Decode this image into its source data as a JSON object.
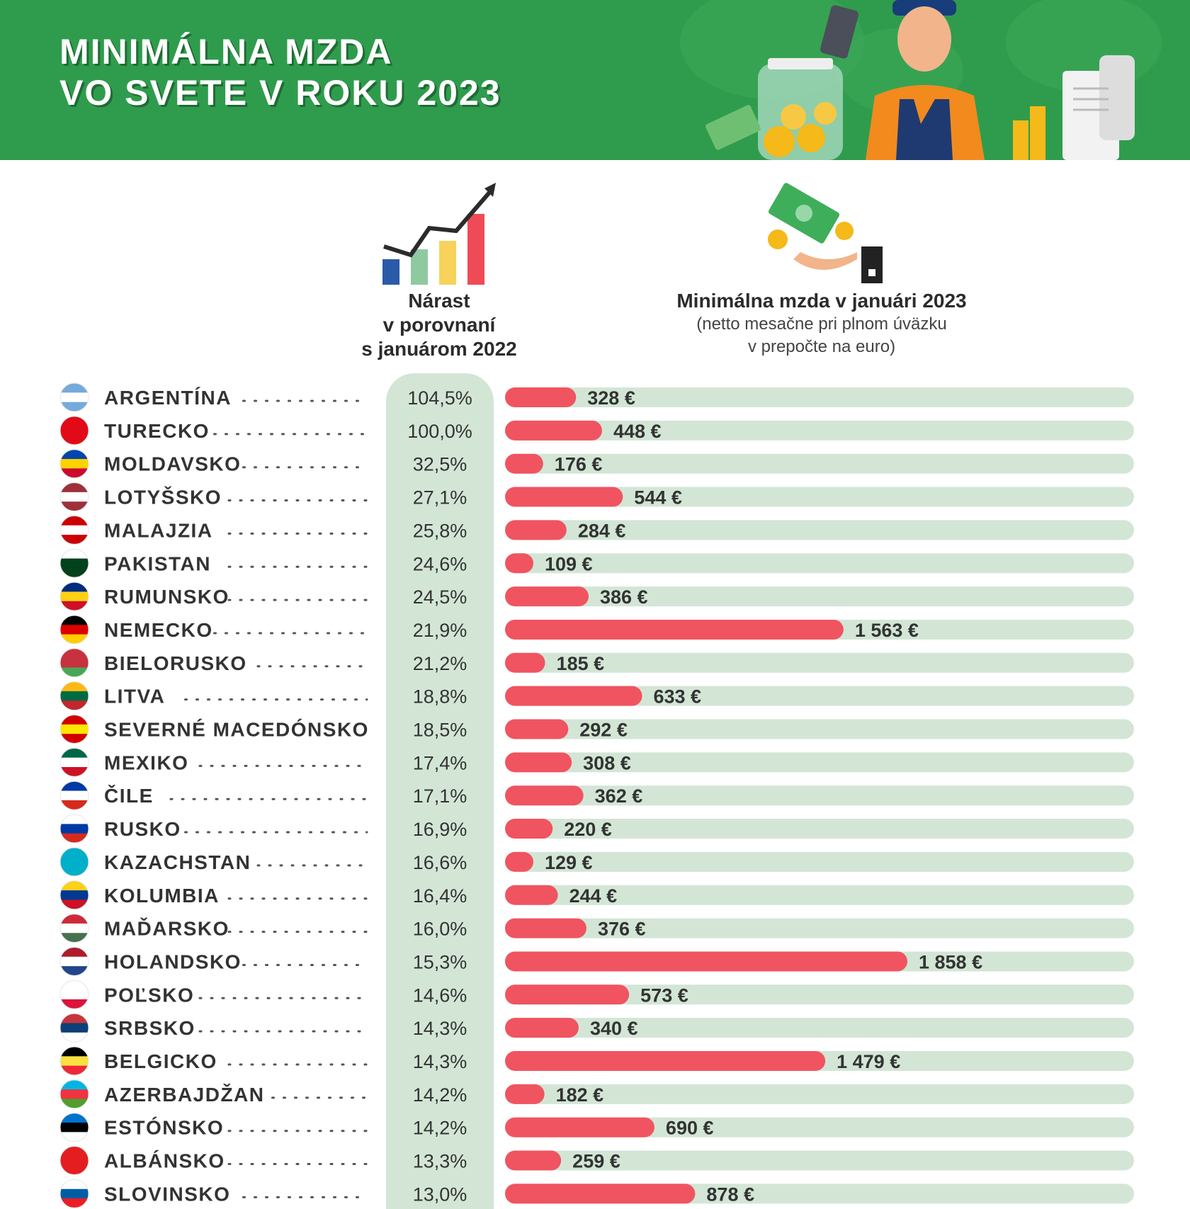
{
  "header": {
    "title_line1": "MINIMÁLNA MZDA",
    "title_line2": "VO SVETE V ROKU 2023"
  },
  "columns": {
    "growth_l1": "Nárast",
    "growth_l2": "v porovnaní",
    "growth_l3": "s januárom 2022",
    "wage_l1": "Minimálna mzda v januári 2023",
    "wage_l2": "(netto mesačne pri plnom úväzku",
    "wage_l3": "v prepočte na euro)"
  },
  "colors": {
    "header_green": "#2f9c4d",
    "bar_red": "#f05460",
    "track_green": "#d3e6d6"
  },
  "chart_data": {
    "type": "bar",
    "orientation": "horizontal",
    "unit": "€",
    "categories": [
      "ARGENTÍNA",
      "TURECKO",
      "MOLDAVSKO",
      "LOTYŠSKO",
      "MALAJZIA",
      "PAKISTAN",
      "RUMUNSKO",
      "NEMECKO",
      "BIELORUSKO",
      "LITVA",
      "SEVERNÉ MACEDÓNSKO",
      "MEXIKO",
      "ČILE",
      "RUSKO",
      "KAZACHSTAN",
      "KOLUMBIA",
      "MAĎARSKO",
      "HOLANDSKO",
      "POĽSKO",
      "SRBSKO",
      "BELGICKO",
      "AZERBAJDŽAN",
      "ESTÓNSKO",
      "ALBÁNSKO",
      "SLOVINSKO"
    ],
    "growth_labels": [
      "104,5%",
      "100,0%",
      "32,5%",
      "27,1%",
      "25,8%",
      "24,6%",
      "24,5%",
      "21,9%",
      "21,2%",
      "18,8%",
      "18,5%",
      "17,4%",
      "17,1%",
      "16,9%",
      "16,6%",
      "16,4%",
      "16,0%",
      "15,3%",
      "14,6%",
      "14,3%",
      "14,3%",
      "14,2%",
      "14,2%",
      "13,3%",
      "13,0%"
    ],
    "values": [
      328,
      448,
      176,
      544,
      284,
      109,
      386,
      1563,
      185,
      633,
      292,
      308,
      362,
      220,
      129,
      244,
      376,
      1858,
      573,
      340,
      1479,
      182,
      690,
      259,
      878
    ],
    "value_labels": [
      "328 €",
      "448 €",
      "176 €",
      "544 €",
      "284 €",
      "109 €",
      "386 €",
      "1 563 €",
      "185 €",
      "633 €",
      "292 €",
      "308 €",
      "362 €",
      "220 €",
      "129 €",
      "244 €",
      "376 €",
      "1 858 €",
      "573 €",
      "340 €",
      "1 479 €",
      "182 €",
      "690 €",
      "259 €",
      "878 €"
    ],
    "xlim": [
      0,
      2500
    ],
    "flags": [
      [
        "#75aadb",
        "#ffffff",
        "#75aadb"
      ],
      [
        "#e30a17",
        "#e30a17",
        "#e30a17"
      ],
      [
        "#0046ae",
        "#ffd200",
        "#cc092f"
      ],
      [
        "#9e3039",
        "#ffffff",
        "#9e3039"
      ],
      [
        "#cc0001",
        "#ffffff",
        "#cc0001"
      ],
      [
        "#ffffff",
        "#01411c",
        "#01411c"
      ],
      [
        "#002b7f",
        "#fcd116",
        "#ce1126"
      ],
      [
        "#000000",
        "#dd0000",
        "#ffce00"
      ],
      [
        "#c8313e",
        "#c8313e",
        "#4aa657"
      ],
      [
        "#fdb913",
        "#006a44",
        "#c1272d"
      ],
      [
        "#d20000",
        "#ffe600",
        "#d20000"
      ],
      [
        "#006847",
        "#ffffff",
        "#ce1126"
      ],
      [
        "#0039a6",
        "#ffffff",
        "#d52b1e"
      ],
      [
        "#ffffff",
        "#0039a6",
        "#d52b1e"
      ],
      [
        "#00afca",
        "#00afca",
        "#00afca"
      ],
      [
        "#fcd116",
        "#003893",
        "#ce1126"
      ],
      [
        "#ce2939",
        "#ffffff",
        "#477050"
      ],
      [
        "#ae1c28",
        "#ffffff",
        "#21468b"
      ],
      [
        "#ffffff",
        "#ffffff",
        "#dc143c"
      ],
      [
        "#c6363c",
        "#0c4076",
        "#ffffff"
      ],
      [
        "#000000",
        "#fae042",
        "#ed2939"
      ],
      [
        "#00b5e2",
        "#ef3340",
        "#509e2f"
      ],
      [
        "#0072ce",
        "#000000",
        "#ffffff"
      ],
      [
        "#e41e20",
        "#e41e20",
        "#e41e20"
      ],
      [
        "#ffffff",
        "#005da4",
        "#ed1c24"
      ]
    ]
  }
}
